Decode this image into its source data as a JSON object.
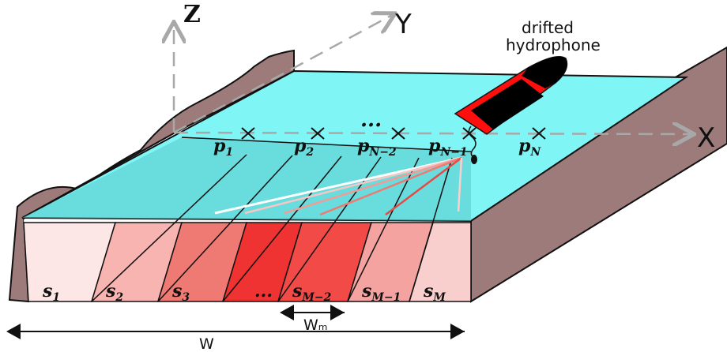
{
  "axes": {
    "x": "X",
    "y": "Y",
    "z": "Z"
  },
  "hydrophone_label": [
    "drifted",
    "hydrophone"
  ],
  "positions": [
    {
      "base": "p",
      "sub": "1"
    },
    {
      "base": "p",
      "sub": "2"
    },
    {
      "base": "p",
      "sub": "N−2"
    },
    {
      "base": "p",
      "sub": "N−1"
    },
    {
      "base": "p",
      "sub": "N"
    }
  ],
  "position_ellipsis": "...",
  "segments": [
    {
      "base": "s",
      "sub": "1",
      "color": "#fce7e6"
    },
    {
      "base": "s",
      "sub": "2",
      "color": "#f7b4b1"
    },
    {
      "base": "s",
      "sub": "3",
      "color": "#ef7a73"
    },
    {
      "base": "s",
      "sub": "...",
      "color": "#ef3232"
    },
    {
      "base": "s",
      "sub": "M−2",
      "color": "#f24b47"
    },
    {
      "base": "s",
      "sub": "M−1",
      "color": "#f5a3a0"
    },
    {
      "base": "s",
      "sub": "M",
      "color": "#f9cfcd"
    }
  ],
  "segment_ellipsis": "...",
  "dims": {
    "segment_width": "Wₘ",
    "total_width": "W"
  },
  "colors": {
    "water": "#7ff5f5",
    "water_dark": "#58c8c8",
    "land": "#9d7b7b",
    "boat_hull": "#ff0e0e",
    "boat_deck": "#000000"
  }
}
